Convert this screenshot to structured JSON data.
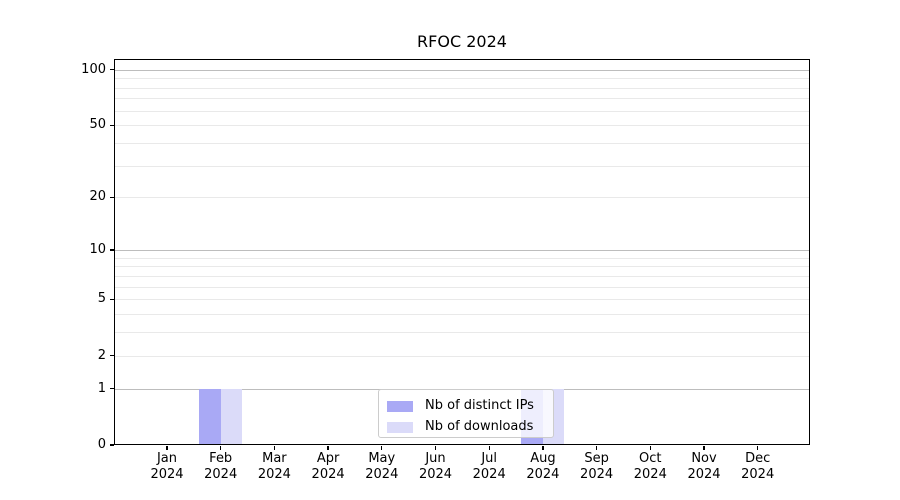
{
  "chart_data": {
    "type": "bar",
    "title": "RFOC 2024",
    "x_tick_months": [
      "Jan",
      "Feb",
      "Mar",
      "Apr",
      "May",
      "Jun",
      "Jul",
      "Aug",
      "Sep",
      "Oct",
      "Nov",
      "Dec"
    ],
    "x_tick_year": "2024",
    "series": [
      {
        "name": "Nb of distinct IPs",
        "color": "#a9a9f5",
        "values": [
          0,
          1,
          0,
          0,
          0,
          0,
          0,
          1,
          0,
          0,
          0,
          0
        ]
      },
      {
        "name": "Nb of downloads",
        "color": "#dbdbf9",
        "values": [
          0,
          1,
          0,
          0,
          0,
          0,
          0,
          1,
          0,
          0,
          0,
          0
        ]
      }
    ],
    "y_scale": "log1p",
    "ylim": [
      0,
      113
    ],
    "y_tick_values": [
      0,
      1,
      2,
      5,
      10,
      20,
      50,
      100
    ],
    "y_tick_labels": [
      "0",
      "1",
      "2",
      "5",
      "10",
      "20",
      "50",
      "100"
    ],
    "y_decade_gridlines": [
      1,
      10,
      100
    ],
    "y_minor_gridlines": [
      2,
      3,
      4,
      5,
      6,
      7,
      8,
      9,
      20,
      30,
      40,
      50,
      60,
      70,
      80,
      90
    ],
    "grid": "horizontal",
    "legend": {
      "location": "lower center"
    },
    "colors": {
      "grid_decade": "#bdbdbd",
      "grid_minor": "#e9e9e9",
      "axis": "#000000",
      "plot_background": "#ffffff"
    }
  }
}
